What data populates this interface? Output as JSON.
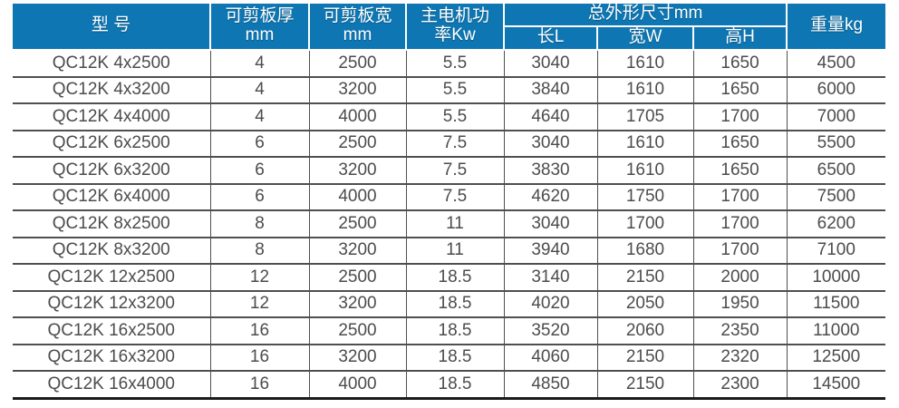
{
  "colors": {
    "header_bg": "#0e76b2",
    "header_text": "#ffffff",
    "body_text": "#4c4c4f",
    "grid_line": "#4f4f4f",
    "bottom_border": "#1b1b1b"
  },
  "table": {
    "header": {
      "model": "型 号",
      "thickness_line1": "可剪板厚",
      "thickness_line2": "mm",
      "cut_width_line1": "可剪板宽",
      "cut_width_line2": "mm",
      "power_line1": "主电机功",
      "power_line2": "率Kw",
      "dims_group": "总外形尺寸mm",
      "dims_length": "长L",
      "dims_width": "宽W",
      "dims_height": "高H",
      "weight": "重量kg"
    },
    "rows": [
      [
        "QC12K 4x2500",
        "4",
        "2500",
        "5.5",
        "3040",
        "1610",
        "1650",
        "4500"
      ],
      [
        "QC12K 4x3200",
        "4",
        "3200",
        "5.5",
        "3840",
        "1610",
        "1650",
        "6000"
      ],
      [
        "QC12K 4x4000",
        "4",
        "4000",
        "5.5",
        "4640",
        "1705",
        "1700",
        "7000"
      ],
      [
        "QC12K 6x2500",
        "6",
        "2500",
        "7.5",
        "3040",
        "1610",
        "1650",
        "5500"
      ],
      [
        "QC12K 6x3200",
        "6",
        "3200",
        "7.5",
        "3830",
        "1610",
        "1650",
        "6500"
      ],
      [
        "QC12K 6x4000",
        "6",
        "4000",
        "7.5",
        "4620",
        "1750",
        "1700",
        "7500"
      ],
      [
        "QC12K 8x2500",
        "8",
        "2500",
        "11",
        "3040",
        "1700",
        "1700",
        "6200"
      ],
      [
        "QC12K 8x3200",
        "8",
        "3200",
        "11",
        "3940",
        "1680",
        "1700",
        "7100"
      ],
      [
        "QC12K 12x2500",
        "12",
        "2500",
        "18.5",
        "3140",
        "2150",
        "2000",
        "10000"
      ],
      [
        "QC12K 12x3200",
        "12",
        "3200",
        "18.5",
        "4020",
        "2050",
        "1950",
        "11500"
      ],
      [
        "QC12K 16x2500",
        "16",
        "2500",
        "18.5",
        "3520",
        "2060",
        "2350",
        "11000"
      ],
      [
        "QC12K 16x3200",
        "16",
        "3200",
        "18.5",
        "4060",
        "2150",
        "2320",
        "12500"
      ],
      [
        "QC12K 16x4000",
        "16",
        "4000",
        "18.5",
        "4850",
        "2150",
        "2300",
        "14500"
      ]
    ]
  }
}
